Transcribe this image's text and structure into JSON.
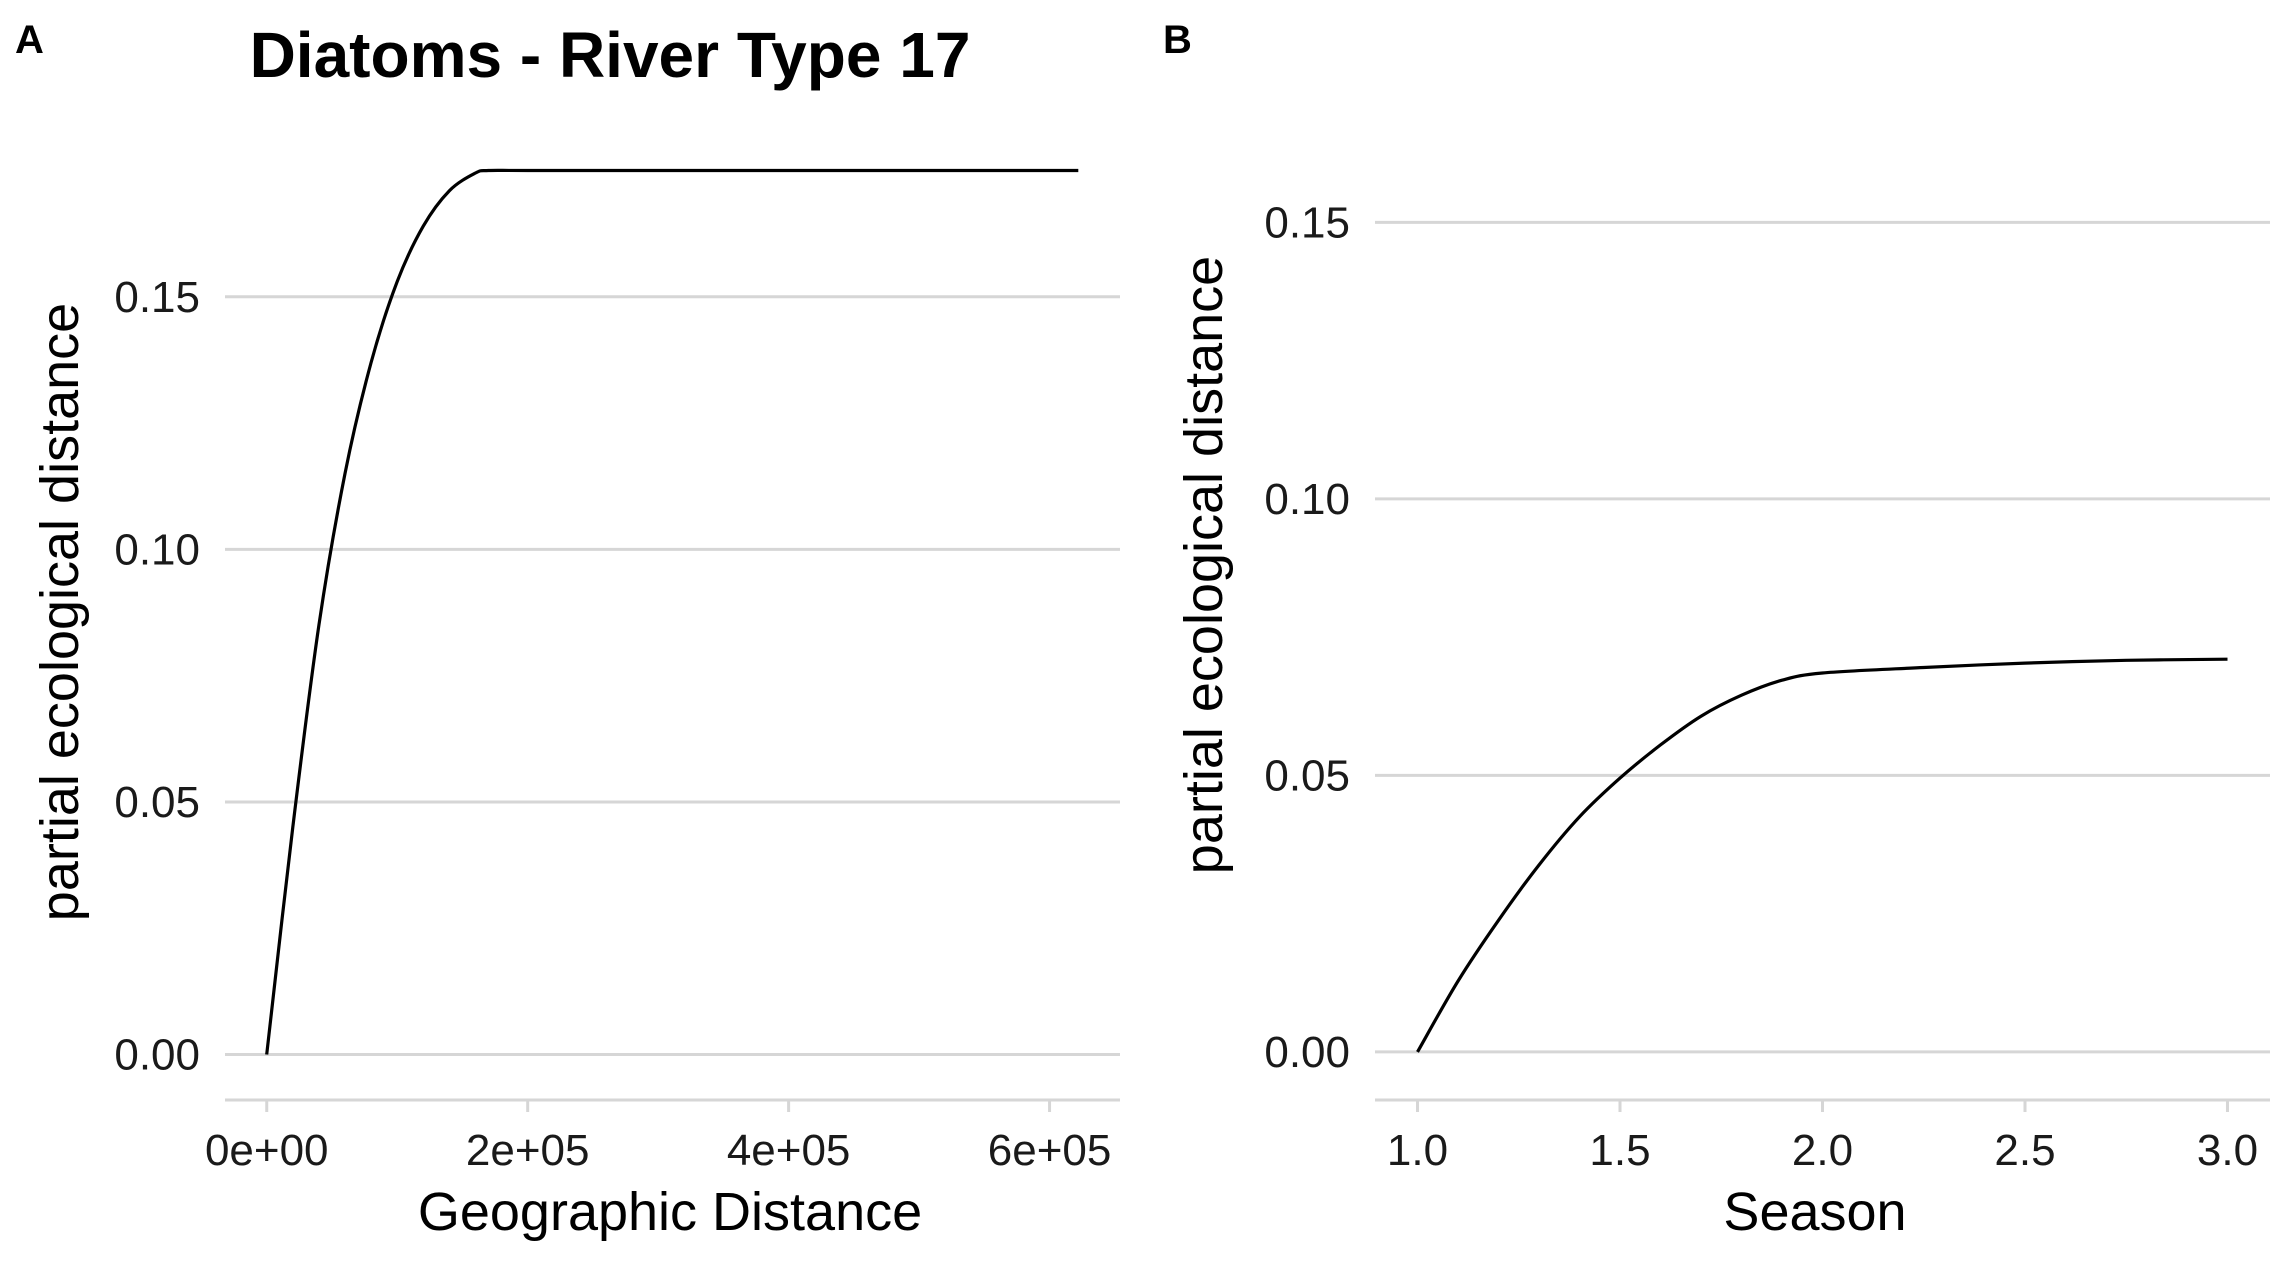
{
  "chart_data": [
    {
      "panel": "A",
      "type": "line",
      "title": "Diatoms - River Type 17",
      "xlabel": "Geographic Distance",
      "ylabel": "partial ecological distance",
      "x_ticks": [
        {
          "value": 0,
          "label": "0e+00"
        },
        {
          "value": 200000,
          "label": "2e+05"
        },
        {
          "value": 400000,
          "label": "4e+05"
        },
        {
          "value": 600000,
          "label": "6e+05"
        }
      ],
      "y_ticks": [
        {
          "value": 0,
          "label": "0.00"
        },
        {
          "value": 0.05,
          "label": "0.05"
        },
        {
          "value": 0.1,
          "label": "0.10"
        },
        {
          "value": 0.15,
          "label": "0.15"
        }
      ],
      "xlim": [
        -32000,
        654000
      ],
      "ylim": [
        -0.009,
        0.185
      ],
      "grid": "horizontal",
      "series": [
        {
          "x": [
            0,
            20000,
            40000,
            60000,
            80000,
            100000,
            120000,
            140000,
            160000,
            170000,
            200000,
            300000,
            400000,
            500000,
            622000
          ],
          "y": [
            0,
            0.045,
            0.085,
            0.115,
            0.137,
            0.153,
            0.164,
            0.171,
            0.1745,
            0.175,
            0.175,
            0.175,
            0.175,
            0.175,
            0.175
          ]
        }
      ]
    },
    {
      "panel": "B",
      "type": "line",
      "title": "",
      "xlabel": "Season",
      "ylabel": "partial ecological distance",
      "x_ticks": [
        {
          "value": 1.0,
          "label": "1.0"
        },
        {
          "value": 1.5,
          "label": "1.5"
        },
        {
          "value": 2.0,
          "label": "2.0"
        },
        {
          "value": 2.5,
          "label": "2.5"
        },
        {
          "value": 3.0,
          "label": "3.0"
        }
      ],
      "y_ticks": [
        {
          "value": 0,
          "label": "0.00"
        },
        {
          "value": 0.05,
          "label": "0.05"
        },
        {
          "value": 0.1,
          "label": "0.10"
        },
        {
          "value": 0.15,
          "label": "0.15"
        }
      ],
      "xlim": [
        0.895,
        3.105
      ],
      "ylim": [
        -0.0087,
        0.1685
      ],
      "grid": "horizontal",
      "series": [
        {
          "x": [
            1.0,
            1.1,
            1.2,
            1.3,
            1.4,
            1.5,
            1.6,
            1.7,
            1.8,
            1.9,
            2.0,
            2.25,
            2.5,
            2.75,
            3.0
          ],
          "y": [
            0,
            0.0128,
            0.0238,
            0.0338,
            0.0425,
            0.0495,
            0.0555,
            0.0607,
            0.0645,
            0.0672,
            0.0685,
            0.0695,
            0.0703,
            0.0708,
            0.071
          ]
        }
      ]
    }
  ]
}
